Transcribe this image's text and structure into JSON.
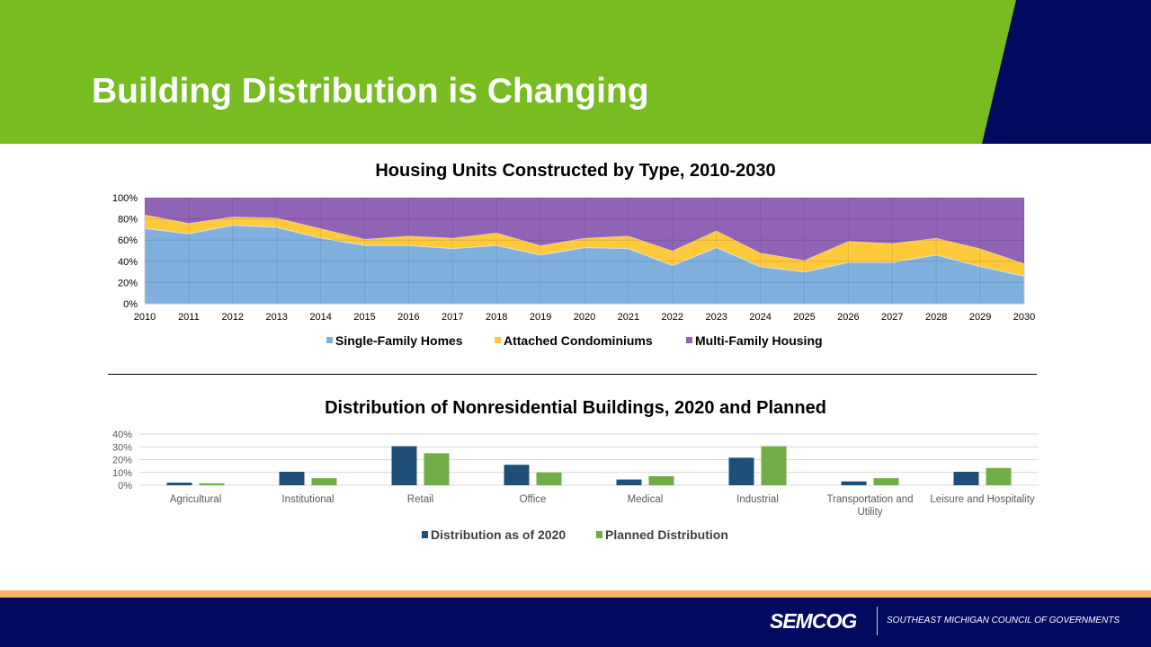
{
  "slide": {
    "title": "Building Distribution is Changing",
    "logo": "SEMCOG",
    "org": "SOUTHEAST MICHIGAN COUNCIL OF GOVERNMENTS"
  },
  "colors": {
    "header_green": "#77bc21",
    "navy": "#020a60",
    "accent_orange": "#f9b36a"
  },
  "chart_data": [
    {
      "type": "area",
      "stacked": "percent",
      "title": "Housing Units Constructed by Type, 2010-2030",
      "categories": [
        "2010",
        "2011",
        "2012",
        "2013",
        "2014",
        "2015",
        "2016",
        "2017",
        "2018",
        "2019",
        "2020",
        "2021",
        "2022",
        "2023",
        "2024",
        "2025",
        "2026",
        "2027",
        "2028",
        "2029",
        "2030"
      ],
      "yticks": [
        "0%",
        "20%",
        "40%",
        "60%",
        "80%",
        "100%"
      ],
      "ylim": [
        0,
        100
      ],
      "grid": true,
      "legend": "bottom",
      "series": [
        {
          "name": "Single-Family Homes",
          "color": "#7fb0de",
          "values": [
            71,
            66,
            74,
            72,
            62,
            55,
            55,
            52,
            55,
            46,
            53,
            52,
            36,
            53,
            35,
            30,
            39,
            39,
            46,
            35,
            26
          ]
        },
        {
          "name": "Attached Condominiums",
          "color": "#ffc93c",
          "values": [
            13,
            10,
            8,
            9,
            9,
            6,
            9,
            10,
            12,
            9,
            9,
            12,
            14,
            16,
            13,
            11,
            20,
            18,
            16,
            17,
            12
          ]
        },
        {
          "name": "Multi-Family Housing",
          "color": "#9063b6",
          "values": [
            16,
            24,
            18,
            19,
            29,
            39,
            36,
            38,
            33,
            45,
            38,
            36,
            50,
            31,
            52,
            59,
            41,
            43,
            38,
            48,
            62
          ]
        }
      ]
    },
    {
      "type": "bar",
      "title": "Distribution of Nonresidential Buildings, 2020 and Planned",
      "categories": [
        "Agricultural",
        "Institutional",
        "Retail",
        "Office",
        "Medical",
        "Industrial",
        "Transportation and Utility",
        "Leisure and Hospitality"
      ],
      "yticks": [
        "0%",
        "10%",
        "20%",
        "30%",
        "40%"
      ],
      "ylim": [
        0,
        40
      ],
      "grid": true,
      "legend": "bottom",
      "series": [
        {
          "name": "Distribution as of 2020",
          "color": "#1f4e79",
          "values": [
            2,
            10.5,
            30.5,
            16,
            4.5,
            21.5,
            3,
            10.5
          ]
        },
        {
          "name": "Planned Distribution",
          "color": "#70ad47",
          "values": [
            1.5,
            5.5,
            25,
            10,
            7,
            30.5,
            5.5,
            13.5
          ]
        }
      ]
    }
  ]
}
